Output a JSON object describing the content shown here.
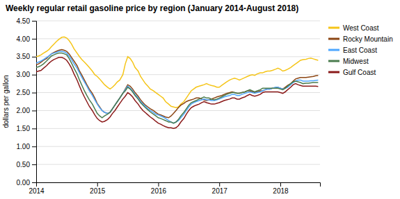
{
  "chart_data": {
    "type": "line",
    "title": "Weekly regular retail gasoline price by region (January 2014-August 2018)",
    "ylabel": "dollars per gallon",
    "xlim": [
      2014.0,
      2018.65
    ],
    "xticks": [
      2014,
      2015,
      2016,
      2017,
      2018
    ],
    "ylim": [
      0,
      4.5
    ],
    "yticks": [
      {
        "value": 0.0,
        "label": "0.00"
      },
      {
        "value": 0.5,
        "label": "0.50"
      },
      {
        "value": 1.0,
        "label": "1.00"
      },
      {
        "value": 1.5,
        "label": "1.50"
      },
      {
        "value": 2.0,
        "label": "2.00"
      },
      {
        "value": 2.5,
        "label": "2.50"
      },
      {
        "value": 3.0,
        "label": "3.00"
      },
      {
        "value": 3.5,
        "label": "3.50"
      },
      {
        "value": 4.0,
        "label": "4.00"
      },
      {
        "value": 4.5,
        "label": "4.50"
      }
    ],
    "grid": true,
    "legend": "top-right",
    "x": [
      2014.0,
      2014.04,
      2014.08,
      2014.12,
      2014.17,
      2014.21,
      2014.25,
      2014.29,
      2014.33,
      2014.37,
      2014.42,
      2014.46,
      2014.5,
      2014.54,
      2014.58,
      2014.62,
      2014.67,
      2014.71,
      2014.75,
      2014.79,
      2014.83,
      2014.87,
      2014.92,
      2014.96,
      2015.0,
      2015.04,
      2015.08,
      2015.12,
      2015.17,
      2015.21,
      2015.25,
      2015.29,
      2015.33,
      2015.37,
      2015.42,
      2015.46,
      2015.5,
      2015.54,
      2015.58,
      2015.62,
      2015.67,
      2015.71,
      2015.75,
      2015.79,
      2015.83,
      2015.87,
      2015.92,
      2015.96,
      2016.0,
      2016.04,
      2016.08,
      2016.12,
      2016.17,
      2016.21,
      2016.25,
      2016.29,
      2016.33,
      2016.37,
      2016.42,
      2016.46,
      2016.5,
      2016.54,
      2016.58,
      2016.62,
      2016.67,
      2016.71,
      2016.75,
      2016.79,
      2016.83,
      2016.87,
      2016.92,
      2016.96,
      2017.0,
      2017.04,
      2017.08,
      2017.12,
      2017.17,
      2017.21,
      2017.25,
      2017.29,
      2017.33,
      2017.37,
      2017.42,
      2017.46,
      2017.5,
      2017.54,
      2017.58,
      2017.62,
      2017.67,
      2017.71,
      2017.75,
      2017.79,
      2017.83,
      2017.87,
      2017.92,
      2017.96,
      2018.0,
      2018.04,
      2018.08,
      2018.12,
      2018.17,
      2018.21,
      2018.25,
      2018.29,
      2018.33,
      2018.37,
      2018.42,
      2018.46,
      2018.5,
      2018.54,
      2018.58,
      2018.62
    ],
    "series": [
      {
        "name": "West Coast",
        "color": "#f5c518",
        "values": [
          3.5,
          3.52,
          3.55,
          3.6,
          3.65,
          3.7,
          3.78,
          3.85,
          3.92,
          3.98,
          4.04,
          4.05,
          4.02,
          3.95,
          3.85,
          3.72,
          3.6,
          3.5,
          3.42,
          3.35,
          3.28,
          3.2,
          3.1,
          3.0,
          2.95,
          2.88,
          2.8,
          2.72,
          2.65,
          2.6,
          2.65,
          2.72,
          2.8,
          2.85,
          3.0,
          3.3,
          3.5,
          3.45,
          3.35,
          3.2,
          3.1,
          2.95,
          2.85,
          2.75,
          2.68,
          2.6,
          2.55,
          2.5,
          2.45,
          2.4,
          2.35,
          2.25,
          2.18,
          2.12,
          2.1,
          2.08,
          2.1,
          2.18,
          2.25,
          2.35,
          2.45,
          2.55,
          2.6,
          2.65,
          2.68,
          2.7,
          2.72,
          2.75,
          2.72,
          2.7,
          2.68,
          2.65,
          2.65,
          2.7,
          2.75,
          2.8,
          2.85,
          2.88,
          2.9,
          2.88,
          2.85,
          2.88,
          2.92,
          2.95,
          2.98,
          3.0,
          2.98,
          3.02,
          3.05,
          3.05,
          3.08,
          3.1,
          3.1,
          3.12,
          3.15,
          3.18,
          3.15,
          3.1,
          3.12,
          3.15,
          3.2,
          3.25,
          3.3,
          3.35,
          3.4,
          3.42,
          3.43,
          3.45,
          3.46,
          3.44,
          3.42,
          3.4
        ]
      },
      {
        "name": "Rocky Mountain",
        "color": "#8B4513",
        "values": [
          3.28,
          3.3,
          3.35,
          3.4,
          3.45,
          3.52,
          3.58,
          3.62,
          3.65,
          3.68,
          3.7,
          3.68,
          3.65,
          3.58,
          3.48,
          3.38,
          3.25,
          3.1,
          2.98,
          2.85,
          2.72,
          2.6,
          2.48,
          2.35,
          2.2,
          2.1,
          2.0,
          1.95,
          1.92,
          1.95,
          2.05,
          2.15,
          2.25,
          2.35,
          2.48,
          2.6,
          2.72,
          2.68,
          2.6,
          2.5,
          2.4,
          2.3,
          2.22,
          2.15,
          2.1,
          2.05,
          2.0,
          1.95,
          1.9,
          1.88,
          1.85,
          1.82,
          1.8,
          1.85,
          1.92,
          2.0,
          2.08,
          2.15,
          2.2,
          2.25,
          2.28,
          2.3,
          2.32,
          2.35,
          2.35,
          2.32,
          2.3,
          2.28,
          2.3,
          2.32,
          2.35,
          2.38,
          2.4,
          2.42,
          2.45,
          2.48,
          2.5,
          2.52,
          2.5,
          2.48,
          2.48,
          2.5,
          2.52,
          2.55,
          2.55,
          2.52,
          2.5,
          2.52,
          2.55,
          2.55,
          2.58,
          2.6,
          2.6,
          2.62,
          2.62,
          2.65,
          2.62,
          2.6,
          2.65,
          2.7,
          2.75,
          2.82,
          2.88,
          2.9,
          2.92,
          2.92,
          2.92,
          2.93,
          2.94,
          2.95,
          2.97,
          2.98
        ]
      },
      {
        "name": "East Coast",
        "color": "#4da6ff",
        "values": [
          3.32,
          3.35,
          3.38,
          3.42,
          3.48,
          3.52,
          3.58,
          3.6,
          3.62,
          3.65,
          3.65,
          3.63,
          3.6,
          3.52,
          3.42,
          3.3,
          3.18,
          3.05,
          2.92,
          2.8,
          2.68,
          2.55,
          2.42,
          2.3,
          2.18,
          2.08,
          2.0,
          1.95,
          1.92,
          1.95,
          2.05,
          2.15,
          2.25,
          2.35,
          2.48,
          2.58,
          2.68,
          2.62,
          2.55,
          2.45,
          2.35,
          2.25,
          2.18,
          2.12,
          2.05,
          2.0,
          1.95,
          1.9,
          1.88,
          1.85,
          1.82,
          1.78,
          1.72,
          1.68,
          1.65,
          1.68,
          1.72,
          1.8,
          1.9,
          2.0,
          2.1,
          2.18,
          2.22,
          2.25,
          2.28,
          2.3,
          2.32,
          2.3,
          2.3,
          2.28,
          2.28,
          2.3,
          2.32,
          2.35,
          2.38,
          2.4,
          2.42,
          2.45,
          2.45,
          2.42,
          2.42,
          2.45,
          2.48,
          2.5,
          2.52,
          2.5,
          2.48,
          2.5,
          2.52,
          2.55,
          2.58,
          2.6,
          2.6,
          2.62,
          2.65,
          2.65,
          2.62,
          2.6,
          2.62,
          2.65,
          2.72,
          2.78,
          2.82,
          2.85,
          2.85,
          2.82,
          2.82,
          2.82,
          2.83,
          2.83,
          2.84,
          2.85
        ]
      },
      {
        "name": "Midwest",
        "color": "#4a7c4e",
        "values": [
          3.2,
          3.22,
          3.25,
          3.3,
          3.38,
          3.45,
          3.52,
          3.55,
          3.58,
          3.6,
          3.6,
          3.58,
          3.55,
          3.45,
          3.32,
          3.18,
          3.02,
          2.85,
          2.7,
          2.55,
          2.42,
          2.3,
          2.18,
          2.05,
          1.92,
          1.85,
          1.8,
          1.85,
          1.9,
          1.95,
          2.05,
          2.15,
          2.25,
          2.35,
          2.48,
          2.55,
          2.65,
          2.6,
          2.52,
          2.42,
          2.32,
          2.22,
          2.15,
          2.08,
          2.02,
          1.96,
          1.9,
          1.85,
          1.8,
          1.78,
          1.75,
          1.72,
          1.68,
          1.68,
          1.65,
          1.68,
          1.75,
          1.85,
          1.95,
          2.05,
          2.15,
          2.22,
          2.25,
          2.28,
          2.32,
          2.35,
          2.38,
          2.35,
          2.35,
          2.32,
          2.3,
          2.32,
          2.35,
          2.38,
          2.42,
          2.45,
          2.48,
          2.5,
          2.5,
          2.48,
          2.48,
          2.5,
          2.52,
          2.55,
          2.58,
          2.55,
          2.52,
          2.55,
          2.58,
          2.62,
          2.62,
          2.62,
          2.62,
          2.62,
          2.62,
          2.62,
          2.6,
          2.58,
          2.62,
          2.68,
          2.75,
          2.8,
          2.82,
          2.8,
          2.78,
          2.75,
          2.76,
          2.76,
          2.77,
          2.78,
          2.78,
          2.78
        ]
      },
      {
        "name": "Gulf Coast",
        "color": "#8B1a1a",
        "values": [
          3.08,
          3.1,
          3.12,
          3.18,
          3.25,
          3.32,
          3.38,
          3.42,
          3.45,
          3.48,
          3.48,
          3.45,
          3.4,
          3.3,
          3.18,
          3.02,
          2.85,
          2.68,
          2.52,
          2.38,
          2.25,
          2.12,
          2.0,
          1.88,
          1.78,
          1.72,
          1.68,
          1.7,
          1.75,
          1.82,
          1.92,
          2.0,
          2.1,
          2.2,
          2.32,
          2.4,
          2.5,
          2.45,
          2.38,
          2.28,
          2.18,
          2.08,
          2.0,
          1.94,
          1.88,
          1.82,
          1.76,
          1.7,
          1.65,
          1.62,
          1.58,
          1.55,
          1.52,
          1.52,
          1.5,
          1.52,
          1.58,
          1.68,
          1.78,
          1.9,
          2.0,
          2.08,
          2.12,
          2.15,
          2.18,
          2.22,
          2.25,
          2.22,
          2.2,
          2.18,
          2.18,
          2.2,
          2.22,
          2.25,
          2.28,
          2.3,
          2.32,
          2.35,
          2.35,
          2.32,
          2.32,
          2.35,
          2.38,
          2.42,
          2.45,
          2.42,
          2.4,
          2.42,
          2.45,
          2.5,
          2.52,
          2.52,
          2.52,
          2.52,
          2.52,
          2.52,
          2.5,
          2.48,
          2.52,
          2.58,
          2.65,
          2.72,
          2.75,
          2.72,
          2.7,
          2.68,
          2.68,
          2.68,
          2.68,
          2.68,
          2.68,
          2.67
        ]
      }
    ]
  }
}
